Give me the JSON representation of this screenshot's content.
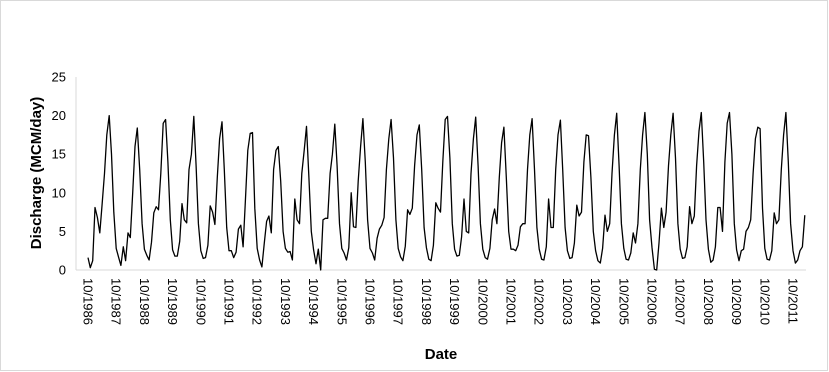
{
  "chart_data": {
    "type": "line",
    "title": "",
    "xlabel": "Date",
    "ylabel": "Discharge (MCM/day)",
    "ylim": [
      0,
      25
    ],
    "yticks": [
      0,
      5,
      10,
      15,
      20,
      25
    ],
    "grid": false,
    "legend": "none",
    "line_color": "#000000",
    "x_ticks": [
      "10/1986",
      "10/1987",
      "10/1988",
      "10/1989",
      "10/1990",
      "10/1991",
      "10/1992",
      "10/1993",
      "10/1994",
      "10/1995",
      "10/1996",
      "10/1997",
      "10/1998",
      "10/1999",
      "10/2000",
      "10/2001",
      "10/2002",
      "10/2003",
      "10/2004",
      "10/2005",
      "10/2006",
      "10/2007",
      "10/2008",
      "10/2009",
      "10/2010",
      "10/2011"
    ],
    "x_range": [
      "10/1986",
      "12/2011"
    ],
    "month_offsets": [
      0,
      1,
      2,
      3,
      4,
      5,
      6,
      7,
      8,
      9,
      10,
      11
    ],
    "series": [
      {
        "monthly_by_water_year": [
          {
            "year": "1986-87",
            "values": [
              1.6,
              0.3,
              1.2,
              8.1,
              6.8,
              4.8,
              8.5,
              12.5,
              17.5,
              20.0,
              15.0,
              7.5
            ]
          },
          {
            "year": "1987-88",
            "values": [
              2.8,
              1.7,
              0.6,
              3.0,
              1.2,
              4.8,
              4.2,
              10.0,
              16.0,
              18.4,
              13.0,
              6.0
            ]
          },
          {
            "year": "1988-89",
            "values": [
              2.7,
              1.9,
              1.3,
              3.6,
              7.4,
              8.2,
              7.8,
              12.5,
              19.0,
              19.5,
              14.0,
              6.5
            ]
          },
          {
            "year": "1989-90",
            "values": [
              2.6,
              1.8,
              1.8,
              3.7,
              8.6,
              6.5,
              6.1,
              13.0,
              15.0,
              19.9,
              13.5,
              6.0
            ]
          },
          {
            "year": "1990-91",
            "values": [
              2.5,
              1.5,
              1.6,
              3.2,
              8.3,
              7.5,
              5.9,
              12.0,
              17.0,
              19.2,
              13.0,
              5.5
            ]
          },
          {
            "year": "1991-92",
            "values": [
              2.5,
              2.5,
              1.6,
              2.3,
              5.3,
              5.8,
              3.0,
              9.0,
              15.5,
              17.7,
              17.8,
              8.0
            ]
          },
          {
            "year": "1992-93",
            "values": [
              2.8,
              1.3,
              0.4,
              3.5,
              6.3,
              7.0,
              4.8,
              13.0,
              15.5,
              16.0,
              11.5,
              5.0
            ]
          },
          {
            "year": "1993-94",
            "values": [
              2.8,
              2.3,
              2.4,
              1.3,
              9.2,
              6.5,
              6.0,
              12.5,
              15.5,
              18.6,
              12.0,
              5.0
            ]
          },
          {
            "year": "1994-95",
            "values": [
              2.6,
              0.8,
              2.7,
              0.0,
              6.5,
              6.7,
              6.7,
              12.5,
              15.0,
              18.9,
              13.5,
              6.0
            ]
          },
          {
            "year": "1995-96",
            "values": [
              2.8,
              2.2,
              1.3,
              2.9,
              10.0,
              5.6,
              5.5,
              11.5,
              16.0,
              19.6,
              14.0,
              6.5
            ]
          },
          {
            "year": "1996-97",
            "values": [
              2.8,
              2.2,
              1.3,
              4.1,
              5.3,
              5.8,
              6.8,
              13.0,
              17.0,
              19.5,
              14.5,
              6.5
            ]
          },
          {
            "year": "1997-98",
            "values": [
              2.8,
              1.7,
              1.2,
              3.1,
              7.8,
              7.2,
              8.0,
              13.5,
              17.5,
              18.8,
              13.0,
              5.5
            ]
          },
          {
            "year": "1998-99",
            "values": [
              2.9,
              1.4,
              1.2,
              3.2,
              8.7,
              8.0,
              7.5,
              14.0,
              19.5,
              19.9,
              14.5,
              6.0
            ]
          },
          {
            "year": "1999-00",
            "values": [
              2.7,
              1.8,
              1.9,
              4.3,
              9.2,
              5.0,
              4.8,
              12.5,
              17.0,
              19.8,
              13.5,
              6.0
            ]
          },
          {
            "year": "2000-01",
            "values": [
              2.7,
              1.6,
              1.4,
              2.8,
              6.5,
              7.9,
              6.0,
              12.0,
              16.5,
              18.5,
              12.0,
              5.0
            ]
          },
          {
            "year": "2001-02",
            "values": [
              2.7,
              2.7,
              2.5,
              3.2,
              5.6,
              6.0,
              6.0,
              13.0,
              17.5,
              19.6,
              13.0,
              5.5
            ]
          },
          {
            "year": "2002-03",
            "values": [
              2.7,
              1.4,
              1.3,
              3.0,
              9.2,
              5.5,
              5.5,
              13.0,
              17.5,
              19.4,
              13.0,
              5.5
            ]
          },
          {
            "year": "2003-04",
            "values": [
              2.5,
              1.5,
              1.6,
              3.5,
              8.4,
              7.0,
              7.5,
              14.0,
              17.5,
              17.4,
              12.0,
              5.0
            ]
          },
          {
            "year": "2004-05",
            "values": [
              2.5,
              1.2,
              0.9,
              2.8,
              7.1,
              5.0,
              6.0,
              12.5,
              17.5,
              20.3,
              13.5,
              6.0
            ]
          },
          {
            "year": "2005-06",
            "values": [
              2.8,
              1.4,
              1.3,
              2.2,
              4.8,
              3.5,
              6.0,
              13.0,
              17.5,
              20.4,
              15.0,
              6.5
            ]
          },
          {
            "year": "2006-07",
            "values": [
              2.9,
              0.1,
              0.0,
              3.5,
              8.0,
              5.5,
              7.5,
              13.5,
              17.5,
              20.3,
              14.5,
              6.0
            ]
          },
          {
            "year": "2007-08",
            "values": [
              2.7,
              1.5,
              1.6,
              3.0,
              8.2,
              6.0,
              7.0,
              13.5,
              18.0,
              20.4,
              14.0,
              6.5
            ]
          },
          {
            "year": "2008-09",
            "values": [
              2.7,
              1.0,
              1.3,
              3.0,
              8.1,
              8.1,
              5.0,
              14.0,
              19.0,
              20.4,
              15.0,
              6.0
            ]
          },
          {
            "year": "2009-10",
            "values": [
              2.6,
              1.2,
              2.5,
              2.7,
              5.0,
              5.5,
              6.5,
              12.5,
              17.0,
              18.5,
              18.3,
              8.0
            ]
          },
          {
            "year": "2010-11",
            "values": [
              2.8,
              1.4,
              1.3,
              2.5,
              7.4,
              6.0,
              6.5,
              13.0,
              17.5,
              20.4,
              14.0,
              6.0
            ]
          },
          {
            "year": "2011-12",
            "values": [
              2.5,
              0.9,
              1.3,
              2.5,
              3.0,
              7.1
            ]
          }
        ]
      }
    ]
  }
}
